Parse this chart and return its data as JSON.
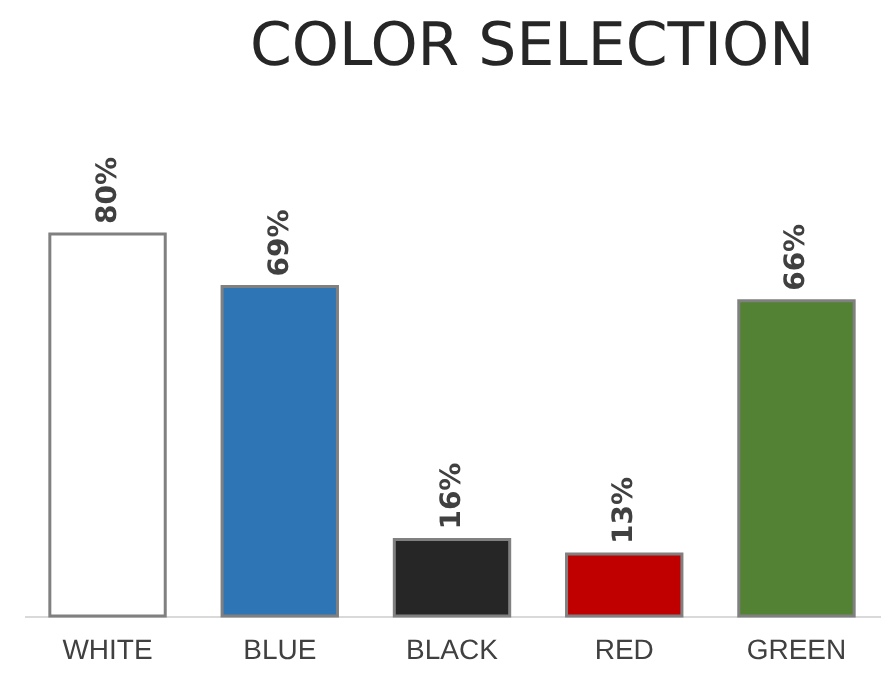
{
  "chart_data": {
    "type": "bar",
    "title": "COLOR SELECTION",
    "categories": [
      "WHITE",
      "BLUE",
      "BLACK",
      "RED",
      "GREEN"
    ],
    "values": [
      80,
      69,
      16,
      13,
      66
    ],
    "colors": [
      "#ffffff",
      "#2e75b6",
      "#262626",
      "#c00000",
      "#548235"
    ],
    "value_labels": [
      "80%",
      "69%",
      "16%",
      "13%",
      "66%"
    ]
  }
}
